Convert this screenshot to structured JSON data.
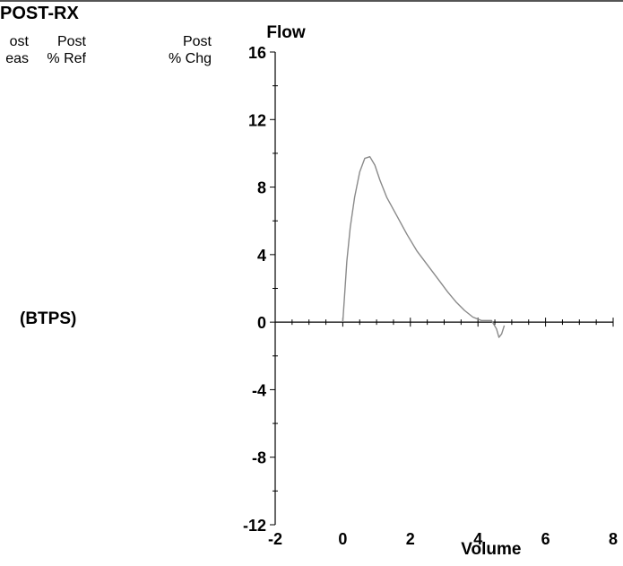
{
  "header": {
    "title": "POST-RX",
    "col1": {
      "line1": "ost",
      "line2": "eas"
    },
    "col2": {
      "line1": "Post",
      "line2": "% Ref"
    },
    "col3": {
      "line1": "Post",
      "line2": "% Chg"
    },
    "units": "(BTPS)"
  },
  "chart_data": {
    "type": "line",
    "title": "",
    "ylabel": "Flow",
    "xlabel": "Volume",
    "xlim": [
      -2,
      8
    ],
    "ylim": [
      -12,
      16
    ],
    "x_ticks": [
      -2,
      0,
      2,
      4,
      6,
      8
    ],
    "y_ticks": [
      16,
      12,
      8,
      4,
      0,
      -4,
      -8,
      -12
    ],
    "grid": false,
    "colors": {
      "curve": "#8a8a8a",
      "axis": "#000000"
    },
    "series": [
      {
        "values": [
          [
            0.0,
            0.0
          ],
          [
            0.05,
            1.5
          ],
          [
            0.12,
            3.6
          ],
          [
            0.22,
            5.6
          ],
          [
            0.35,
            7.4
          ],
          [
            0.5,
            8.9
          ],
          [
            0.65,
            9.7
          ],
          [
            0.8,
            9.8
          ],
          [
            0.95,
            9.3
          ],
          [
            1.1,
            8.4
          ],
          [
            1.3,
            7.4
          ],
          [
            1.6,
            6.3
          ],
          [
            1.9,
            5.2
          ],
          [
            2.2,
            4.2
          ],
          [
            2.5,
            3.4
          ],
          [
            2.8,
            2.6
          ],
          [
            3.1,
            1.8
          ],
          [
            3.35,
            1.2
          ],
          [
            3.6,
            0.7
          ],
          [
            3.85,
            0.3
          ],
          [
            4.1,
            0.1
          ],
          [
            4.4,
            0.1
          ],
          [
            4.55,
            -0.4
          ],
          [
            4.62,
            -0.9
          ],
          [
            4.7,
            -0.7
          ],
          [
            4.78,
            -0.2
          ]
        ]
      }
    ]
  }
}
